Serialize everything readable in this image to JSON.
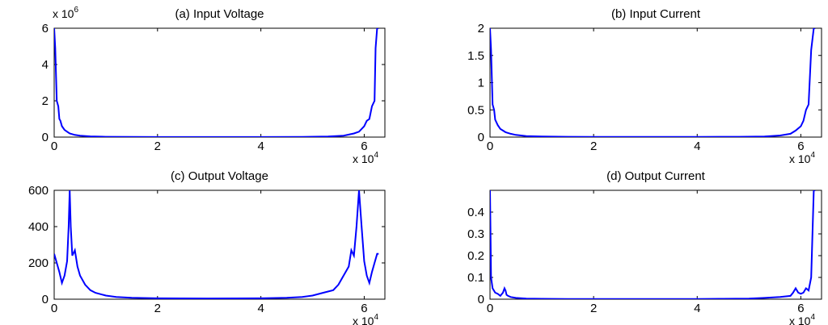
{
  "chart_data": [
    {
      "type": "line",
      "title": "(a) Input Voltage",
      "multiplier_y": {
        "base": "x 10",
        "exp": "6"
      },
      "multiplier_x": {
        "base": "x 10",
        "exp": "4"
      },
      "xlim": [
        0,
        6.4
      ],
      "ylim": [
        0,
        6
      ],
      "xticks": [
        "0",
        "2",
        "4",
        "6"
      ],
      "yticks": [
        "0",
        "2",
        "4",
        "6"
      ],
      "series": [
        {
          "color": "#0000ff",
          "x": [
            0,
            0.02,
            0.05,
            0.08,
            0.1,
            0.12,
            0.15,
            0.2,
            0.25,
            0.3,
            0.4,
            0.5,
            0.7,
            1.0,
            1.5,
            2.0,
            3.0,
            4.0,
            4.8,
            5.3,
            5.6,
            5.8,
            5.9,
            6.0,
            6.05,
            6.1,
            6.15,
            6.2,
            6.22,
            6.25,
            6.28
          ],
          "y": [
            6,
            4.9,
            2.0,
            1.7,
            1.0,
            0.9,
            0.6,
            0.4,
            0.3,
            0.2,
            0.12,
            0.08,
            0.04,
            0.02,
            0.01,
            0.005,
            0.003,
            0.005,
            0.01,
            0.03,
            0.08,
            0.2,
            0.3,
            0.6,
            0.9,
            1.0,
            1.7,
            2.0,
            4.9,
            6,
            6
          ]
        }
      ]
    },
    {
      "type": "line",
      "title": "(b) Input Current",
      "multiplier_x": {
        "base": "x 10",
        "exp": "4"
      },
      "xlim": [
        0,
        6.4
      ],
      "ylim": [
        0,
        2
      ],
      "xticks": [
        "0",
        "2",
        "4",
        "6"
      ],
      "yticks": [
        "0",
        "0.5",
        "1",
        "1.5",
        "2"
      ],
      "series": [
        {
          "color": "#0000ff",
          "x": [
            0,
            0.02,
            0.05,
            0.08,
            0.1,
            0.15,
            0.2,
            0.25,
            0.3,
            0.4,
            0.5,
            0.7,
            1.0,
            1.5,
            2.0,
            3.0,
            4.0,
            4.8,
            5.3,
            5.6,
            5.8,
            5.9,
            6.0,
            6.05,
            6.1,
            6.15,
            6.2,
            6.25,
            6.28
          ],
          "y": [
            2,
            1.6,
            0.6,
            0.5,
            0.32,
            0.22,
            0.15,
            0.12,
            0.09,
            0.06,
            0.04,
            0.02,
            0.01,
            0.006,
            0.004,
            0.003,
            0.004,
            0.006,
            0.01,
            0.03,
            0.06,
            0.12,
            0.2,
            0.3,
            0.5,
            0.6,
            1.6,
            2,
            2
          ]
        }
      ]
    },
    {
      "type": "line",
      "title": "(c) Output Voltage",
      "multiplier_x": {
        "base": "x 10",
        "exp": "4"
      },
      "xlim": [
        0,
        6.4
      ],
      "ylim": [
        0,
        600
      ],
      "xticks": [
        "0",
        "2",
        "4",
        "6"
      ],
      "yticks": [
        "0",
        "200",
        "400",
        "600"
      ],
      "series": [
        {
          "color": "#0000ff",
          "x": [
            0,
            0.05,
            0.1,
            0.15,
            0.2,
            0.25,
            0.28,
            0.3,
            0.32,
            0.35,
            0.4,
            0.45,
            0.5,
            0.6,
            0.7,
            0.8,
            1.0,
            1.2,
            1.5,
            2.0,
            3.0,
            4.0,
            4.5,
            4.8,
            5.0,
            5.2,
            5.4,
            5.5,
            5.6,
            5.7,
            5.75,
            5.8,
            5.85,
            5.9,
            5.95,
            6.0,
            6.05,
            6.1,
            6.15,
            6.2,
            6.25,
            6.28
          ],
          "y": [
            250,
            200,
            150,
            90,
            130,
            210,
            400,
            600,
            400,
            240,
            270,
            180,
            130,
            80,
            50,
            35,
            20,
            12,
            8,
            5,
            4,
            5,
            8,
            12,
            20,
            35,
            50,
            80,
            130,
            180,
            270,
            240,
            400,
            600,
            400,
            210,
            130,
            90,
            150,
            200,
            250,
            250
          ]
        }
      ]
    },
    {
      "type": "line",
      "title": "(d) Output Current",
      "multiplier_x": {
        "base": "x 10",
        "exp": "4"
      },
      "xlim": [
        0,
        6.4
      ],
      "ylim": [
        0,
        0.5
      ],
      "xticks": [
        "0",
        "2",
        "4",
        "6"
      ],
      "yticks": [
        "0",
        "0.1",
        "0.2",
        "0.3",
        "0.4"
      ],
      "series": [
        {
          "color": "#0000ff",
          "x": [
            0,
            0.02,
            0.05,
            0.1,
            0.15,
            0.2,
            0.25,
            0.28,
            0.3,
            0.32,
            0.35,
            0.4,
            0.5,
            0.7,
            1.0,
            1.5,
            2.0,
            3.0,
            4.0,
            4.5,
            5.0,
            5.3,
            5.6,
            5.8,
            5.85,
            5.9,
            5.95,
            6.0,
            6.05,
            6.1,
            6.15,
            6.2,
            6.25,
            6.28
          ],
          "y": [
            0.5,
            0.1,
            0.05,
            0.03,
            0.025,
            0.015,
            0.03,
            0.05,
            0.04,
            0.02,
            0.015,
            0.01,
            0.006,
            0.003,
            0.002,
            0.001,
            0.001,
            0.001,
            0.001,
            0.002,
            0.003,
            0.006,
            0.01,
            0.015,
            0.03,
            0.05,
            0.03,
            0.025,
            0.03,
            0.05,
            0.04,
            0.1,
            0.5,
            0.5
          ]
        }
      ]
    }
  ]
}
